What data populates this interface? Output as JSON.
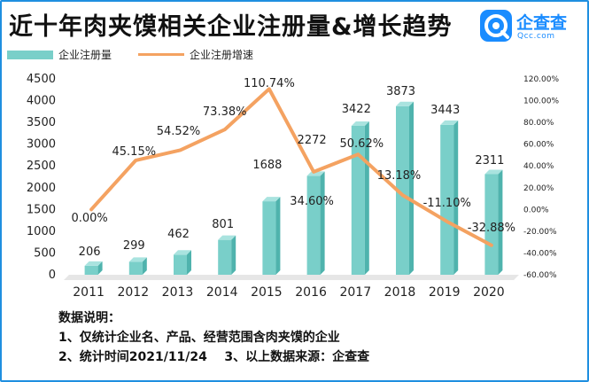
{
  "title": "近十年肉夹馍相关企业注册量&增长趋势",
  "logo": {
    "name": "企查查",
    "sub": "Qcc.com"
  },
  "colors": {
    "bar_front": "#79cfc9",
    "bar_side": "#4fb3ad",
    "bar_top": "#a9e3df",
    "line": "#f4a261",
    "frame": "#1f8fe0",
    "logo": "#1a8cff"
  },
  "notes": {
    "heading": "数据说明：",
    "line1": "1、仅统计企业名、产品、经营范围含肉夹馍的企业",
    "line2": "2、统计时间2021/11/24    3、以上数据来源：企查查"
  },
  "chart_data": {
    "type": "bar",
    "legend_position": "top-left",
    "grid": false,
    "categories": [
      "2011",
      "2012",
      "2013",
      "2014",
      "2015",
      "2016",
      "2017",
      "2018",
      "2019",
      "2020"
    ],
    "series": [
      {
        "name": "企业注册量",
        "type": "bar",
        "axis": "left",
        "values": [
          206,
          299,
          462,
          801,
          1688,
          2272,
          3422,
          3873,
          3443,
          2311
        ],
        "labels": [
          "206",
          "299",
          "462",
          "801",
          "1688",
          "2272",
          "3422",
          "3873",
          "3443",
          "2311"
        ]
      },
      {
        "name": "企业注册增速",
        "type": "line",
        "axis": "right",
        "values": [
          0.0,
          45.15,
          54.52,
          73.38,
          110.74,
          34.6,
          50.62,
          13.18,
          -11.1,
          -32.88
        ],
        "labels": [
          "0.00%",
          "45.15%",
          "54.52%",
          "73.38%",
          "110.74%",
          "34.60%",
          "50.62%",
          "13.18%",
          "-11.10%",
          "-32.88%"
        ]
      }
    ],
    "y_left": {
      "min": 0,
      "max": 4500,
      "ticks": [
        "0",
        "500",
        "1000",
        "1500",
        "2000",
        "2500",
        "3000",
        "3500",
        "4000",
        "4500"
      ]
    },
    "y_right": {
      "min": -60,
      "max": 120,
      "ticks": [
        "-60.00%",
        "-40.00%",
        "-20.00%",
        "0.00%",
        "20.00%",
        "40.00%",
        "60.00%",
        "80.00%",
        "100.00%",
        "120.00%"
      ]
    }
  }
}
